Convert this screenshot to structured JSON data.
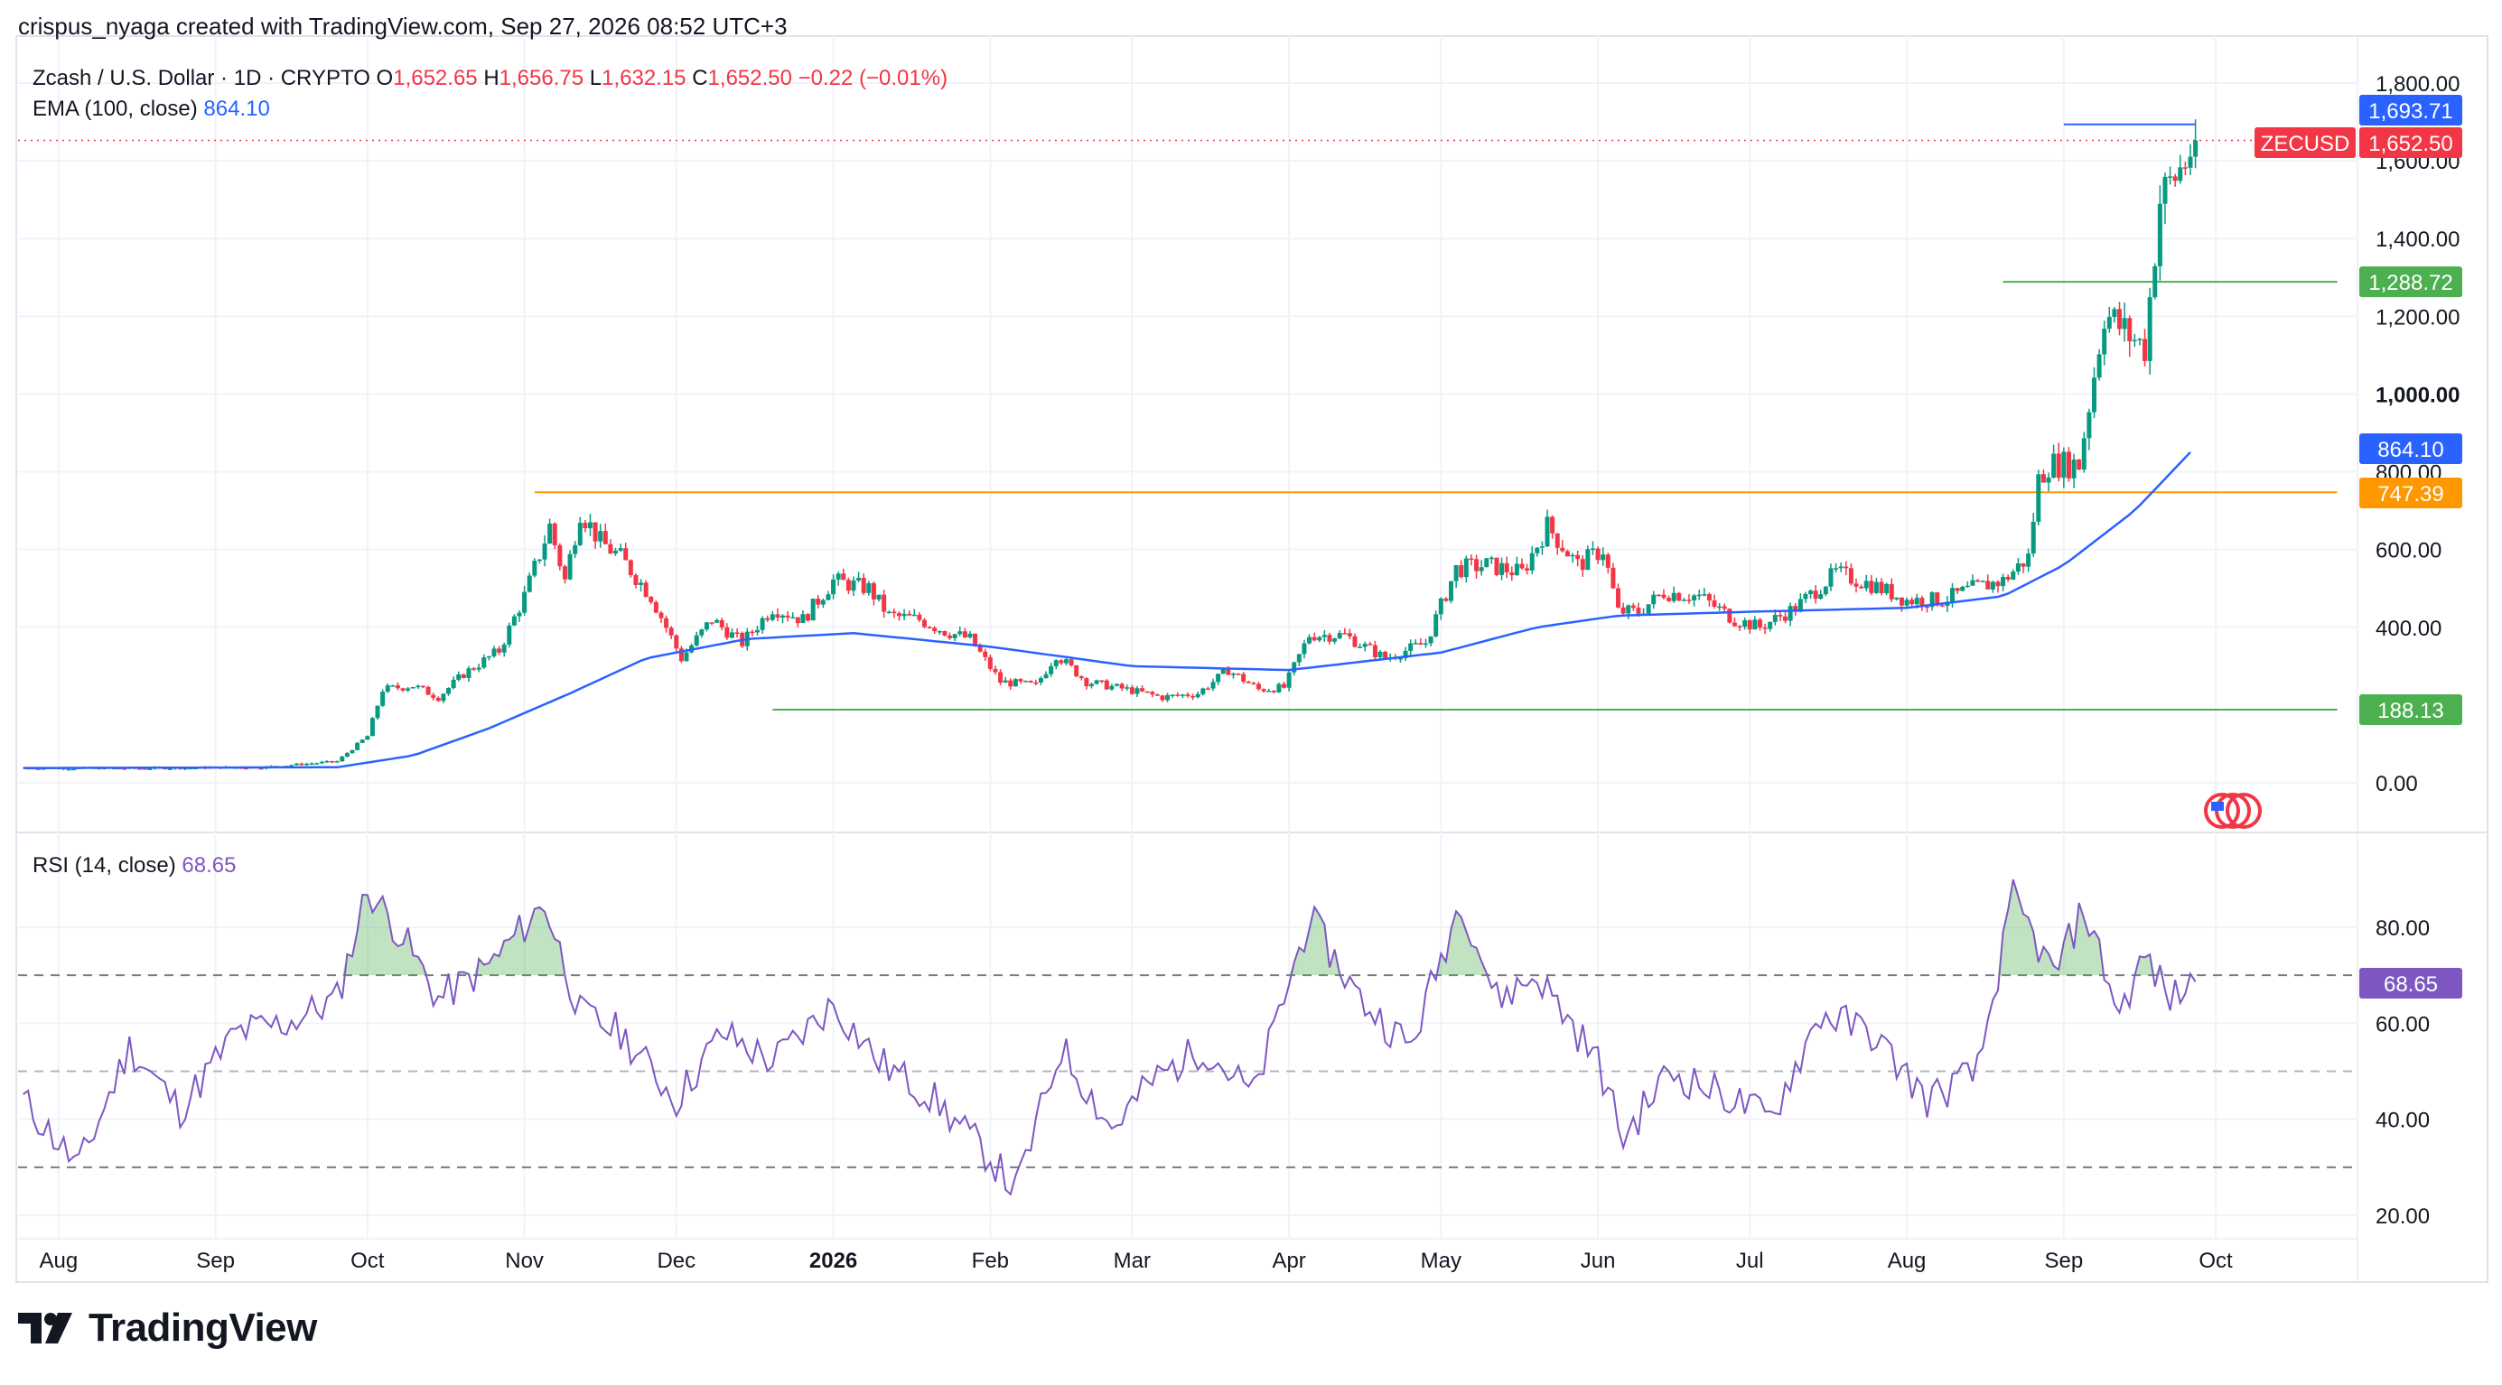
{
  "header": {
    "credit": "crispus_nyaga created with TradingView.com, Sep 27, 2026 08:52 UTC+3"
  },
  "legend": {
    "symbol": "Zcash / U.S. Dollar · 1D · CRYPTO",
    "o_label": "O",
    "o_value": "1,652.65",
    "h_label": "H",
    "h_value": "1,656.75",
    "l_label": "L",
    "l_value": "1,632.15",
    "c_label": "C",
    "c_value": "1,652.50",
    "change": "−0.22 (−0.01%)",
    "ema_label": "EMA (100, close)",
    "ema_value": "864.10",
    "rsi_label": "RSI (14, close)",
    "rsi_value": "68.65"
  },
  "colors": {
    "up": "#089981",
    "down": "#f23645",
    "ema": "#2962ff",
    "rsi": "#7e57c2",
    "orange": "#ff9800",
    "green": "#4caf50",
    "blue_line": "#2962ff"
  },
  "branding": {
    "name": "TradingView"
  },
  "chart_data": [
    {
      "type": "candlestick",
      "title": "Zcash / U.S. Dollar · 1D · CRYPTO",
      "x_tick_labels": [
        "Aug",
        "Sep",
        "Oct",
        "Nov",
        "Dec",
        "2026",
        "Feb",
        "Mar",
        "Apr",
        "May",
        "Jun",
        "Jul",
        "Aug",
        "Sep",
        "Oct"
      ],
      "y_ticks": [
        "0.00",
        "400.00",
        "600.00",
        "800.00",
        "1,000.00",
        "1,200.00",
        "1,400.00",
        "1,600.00",
        "1,800.00"
      ],
      "ylim": [
        -60,
        1810
      ],
      "price_labels": [
        {
          "text": "1,693.71",
          "value": 1693.71,
          "color": "#2962ff"
        },
        {
          "text": "ZECUSD",
          "value": 1652.5,
          "color": "#f23645"
        },
        {
          "text": "1,652.50",
          "value": 1652.5,
          "color": "#f23645"
        },
        {
          "text": "1,288.72",
          "value": 1288.72,
          "color": "#4caf50"
        },
        {
          "text": "864.10",
          "value": 864.1,
          "color": "#2962ff"
        },
        {
          "text": "747.39",
          "value": 747.39,
          "color": "#ff9800"
        },
        {
          "text": "188.13",
          "value": 188.13,
          "color": "#4caf50"
        }
      ],
      "horizontal_levels": [
        {
          "value": 1693.71,
          "from": "2026-09-01",
          "to": "2026-09-27",
          "color": "#2962ff"
        },
        {
          "value": 1288.72,
          "from": "2026-08-20",
          "to": "2026-10-25",
          "color": "#4caf50"
        },
        {
          "value": 747.39,
          "from": "2025-11-03",
          "to": "2026-10-25",
          "color": "#ff9800"
        },
        {
          "value": 188.13,
          "from": "2025-12-20",
          "to": "2026-10-25",
          "color": "#4caf50"
        }
      ],
      "price_path": [
        [
          "2025-07-25",
          38
        ],
        [
          "2025-08-15",
          37
        ],
        [
          "2025-09-10",
          40
        ],
        [
          "2025-09-25",
          55
        ],
        [
          "2025-10-01",
          120
        ],
        [
          "2025-10-04",
          240
        ],
        [
          "2025-10-10",
          250
        ],
        [
          "2025-10-15",
          220
        ],
        [
          "2025-10-20",
          280
        ],
        [
          "2025-10-27",
          340
        ],
        [
          "2025-11-01",
          480
        ],
        [
          "2025-11-06",
          660
        ],
        [
          "2025-11-09",
          520
        ],
        [
          "2025-11-12",
          700
        ],
        [
          "2025-11-16",
          620
        ],
        [
          "2025-11-20",
          580
        ],
        [
          "2025-11-26",
          480
        ],
        [
          "2025-12-02",
          320
        ],
        [
          "2025-12-08",
          420
        ],
        [
          "2025-12-14",
          360
        ],
        [
          "2025-12-20",
          450
        ],
        [
          "2025-12-26",
          420
        ],
        [
          "2026-01-01",
          520
        ],
        [
          "2026-01-08",
          500
        ],
        [
          "2026-01-12",
          430
        ],
        [
          "2026-01-18",
          420
        ],
        [
          "2026-01-23",
          390
        ],
        [
          "2026-01-28",
          370
        ],
        [
          "2026-02-03",
          260
        ],
        [
          "2026-02-10",
          250
        ],
        [
          "2026-02-14",
          330
        ],
        [
          "2026-02-20",
          260
        ],
        [
          "2026-02-28",
          240
        ],
        [
          "2026-03-07",
          220
        ],
        [
          "2026-03-14",
          230
        ],
        [
          "2026-03-20",
          290
        ],
        [
          "2026-03-26",
          240
        ],
        [
          "2026-03-31",
          245
        ],
        [
          "2026-04-05",
          380
        ],
        [
          "2026-04-12",
          380
        ],
        [
          "2026-04-20",
          320
        ],
        [
          "2026-04-28",
          360
        ],
        [
          "2026-05-04",
          550
        ],
        [
          "2026-05-10",
          560
        ],
        [
          "2026-05-17",
          540
        ],
        [
          "2026-05-22",
          660
        ],
        [
          "2026-05-28",
          560
        ],
        [
          "2026-06-02",
          600
        ],
        [
          "2026-06-05",
          440
        ],
        [
          "2026-06-09",
          440
        ],
        [
          "2026-06-14",
          490
        ],
        [
          "2026-06-21",
          480
        ],
        [
          "2026-06-28",
          420
        ],
        [
          "2026-07-03",
          400
        ],
        [
          "2026-07-10",
          450
        ],
        [
          "2026-07-18",
          540
        ],
        [
          "2026-07-25",
          510
        ],
        [
          "2026-08-01",
          470
        ],
        [
          "2026-08-08",
          470
        ],
        [
          "2026-08-14",
          500
        ],
        [
          "2026-08-20",
          520
        ],
        [
          "2026-08-25",
          580
        ],
        [
          "2026-08-27",
          780
        ],
        [
          "2026-08-29",
          820
        ],
        [
          "2026-09-01",
          820
        ],
        [
          "2026-09-04",
          820
        ],
        [
          "2026-09-07",
          1050
        ],
        [
          "2026-09-09",
          1210
        ],
        [
          "2026-09-14",
          1150
        ],
        [
          "2026-09-17",
          1120
        ],
        [
          "2026-09-20",
          1500
        ],
        [
          "2026-09-23",
          1560
        ],
        [
          "2026-09-25",
          1600
        ],
        [
          "2026-09-27",
          1652.5
        ]
      ],
      "ema_path": [
        [
          "2025-07-25",
          38
        ],
        [
          "2025-09-25",
          40
        ],
        [
          "2025-10-10",
          70
        ],
        [
          "2025-10-25",
          140
        ],
        [
          "2025-11-10",
          230
        ],
        [
          "2025-11-25",
          320
        ],
        [
          "2025-12-15",
          370
        ],
        [
          "2026-01-05",
          385
        ],
        [
          "2026-02-01",
          350
        ],
        [
          "2026-03-01",
          300
        ],
        [
          "2026-04-01",
          290
        ],
        [
          "2026-05-01",
          335
        ],
        [
          "2026-05-20",
          400
        ],
        [
          "2026-06-05",
          430
        ],
        [
          "2026-07-01",
          440
        ],
        [
          "2026-08-01",
          450
        ],
        [
          "2026-08-20",
          480
        ],
        [
          "2026-09-01",
          560
        ],
        [
          "2026-09-15",
          700
        ],
        [
          "2026-09-27",
          864.1
        ]
      ]
    },
    {
      "type": "line",
      "title": "RSI (14, close)",
      "y_ticks": [
        "20.00",
        "40.00",
        "60.00",
        "80.00"
      ],
      "ylim": [
        16,
        92
      ],
      "bands": [
        70,
        50,
        30
      ],
      "value_label": "68.65",
      "values_path": [
        [
          "2025-07-25",
          44
        ],
        [
          "2025-08-05",
          30
        ],
        [
          "2025-08-15",
          55
        ],
        [
          "2025-08-25",
          42
        ],
        [
          "2025-09-05",
          58
        ],
        [
          "2025-09-15",
          60
        ],
        [
          "2025-09-25",
          65
        ],
        [
          "2025-10-01",
          88
        ],
        [
          "2025-10-08",
          78
        ],
        [
          "2025-10-15",
          65
        ],
        [
          "2025-10-25",
          72
        ],
        [
          "2025-11-05",
          85
        ],
        [
          "2025-11-12",
          62
        ],
        [
          "2025-11-20",
          58
        ],
        [
          "2025-12-01",
          44
        ],
        [
          "2025-12-10",
          58
        ],
        [
          "2025-12-20",
          52
        ],
        [
          "2026-01-01",
          64
        ],
        [
          "2026-01-10",
          52
        ],
        [
          "2026-01-20",
          45
        ],
        [
          "2026-02-01",
          32
        ],
        [
          "2026-02-06",
          25
        ],
        [
          "2026-02-15",
          55
        ],
        [
          "2026-02-25",
          38
        ],
        [
          "2026-03-05",
          48
        ],
        [
          "2026-03-15",
          55
        ],
        [
          "2026-03-25",
          45
        ],
        [
          "2026-04-05",
          82
        ],
        [
          "2026-04-15",
          65
        ],
        [
          "2026-04-25",
          55
        ],
        [
          "2026-05-05",
          86
        ],
        [
          "2026-05-12",
          65
        ],
        [
          "2026-05-20",
          70
        ],
        [
          "2026-06-01",
          52
        ],
        [
          "2026-06-06",
          36
        ],
        [
          "2026-06-15",
          50
        ],
        [
          "2026-06-28",
          44
        ],
        [
          "2026-07-05",
          40
        ],
        [
          "2026-07-15",
          62
        ],
        [
          "2026-07-25",
          58
        ],
        [
          "2026-08-05",
          44
        ],
        [
          "2026-08-15",
          50
        ],
        [
          "2026-08-22",
          86
        ],
        [
          "2026-08-30",
          70
        ],
        [
          "2026-09-05",
          84
        ],
        [
          "2026-09-12",
          62
        ],
        [
          "2026-09-17",
          74
        ],
        [
          "2026-09-22",
          65
        ],
        [
          "2026-09-27",
          68.65
        ]
      ]
    }
  ]
}
